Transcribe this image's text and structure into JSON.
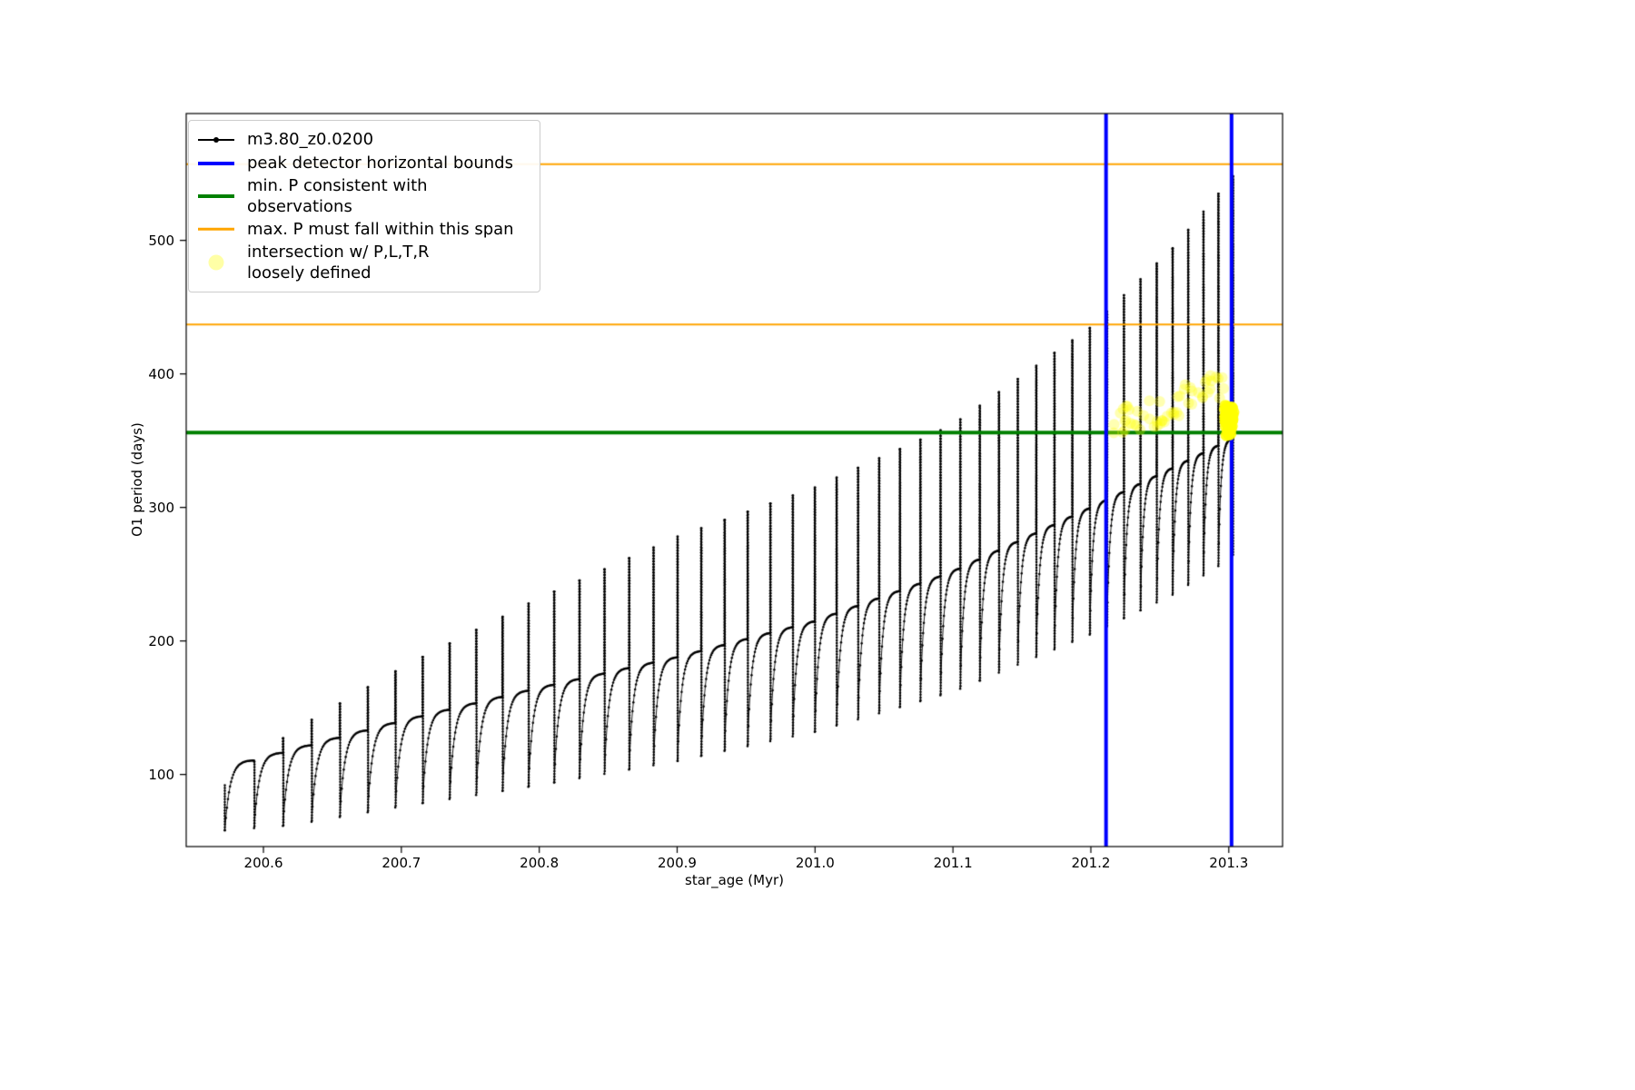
{
  "figure": {
    "background": "#ffffff",
    "axes_border_color": "#000000"
  },
  "chart_data": {
    "type": "line",
    "title": "",
    "xlabel": "star_age (Myr)",
    "ylabel": "O1 period (days)",
    "xlim": [
      200.544,
      201.339
    ],
    "ylim": [
      46,
      595
    ],
    "xticks": [
      "200.6",
      "200.7",
      "200.8",
      "200.9",
      "201.0",
      "201.1",
      "201.2",
      "201.3"
    ],
    "yticks": [
      "100",
      "200",
      "300",
      "400",
      "500"
    ],
    "grid": false,
    "legend_position": "upper left",
    "series": [
      {
        "name": "m3.80_z0.0200",
        "color": "#000000",
        "marker": "point",
        "description": "pulsation period track: ~46 sawtooth cycles, smooth saturating rise per cycle ending in a tall narrow spike; spike amplitude grows with age",
        "model": {
          "x_start": 200.572,
          "x_end": 201.303,
          "n_cycles": 46,
          "spacing_shrink_ratio": 2.0,
          "env_x": [
            200.572,
            200.62,
            200.7,
            200.8,
            200.9,
            201.0,
            201.1,
            201.2,
            201.26,
            201.303
          ],
          "bottom": [
            58,
            62,
            76,
            92,
            110,
            132,
            162,
            205,
            235,
            263
          ],
          "plateau": [
            105,
            118,
            140,
            165,
            188,
            215,
            252,
            300,
            330,
            352
          ],
          "top": [
            92,
            132,
            180,
            232,
            278,
            315,
            362,
            435,
            495,
            548
          ]
        }
      }
    ],
    "annotations": {
      "vlines": [
        {
          "x": 201.211,
          "color": "#0000ff",
          "lw": 4,
          "label": "peak detector horizontal bounds"
        },
        {
          "x": 201.302,
          "color": "#0000ff",
          "lw": 4
        }
      ],
      "hlines": [
        {
          "y": 356,
          "color": "#008000",
          "lw": 4,
          "label": "min. P consistent with observations"
        },
        {
          "y": 437,
          "color": "#ffa500",
          "lw": 2,
          "label": "max. P must fall within this span"
        },
        {
          "y": 557,
          "color": "#ffa500",
          "lw": 2
        }
      ],
      "scatter": {
        "label": "intersection w/ P,L,T,R loosely defined",
        "color": "#ffff00",
        "trail": {
          "x0": 201.215,
          "x1": 201.297,
          "y_base": 357,
          "y_rise": 30,
          "y_jitter": 24,
          "n": 55,
          "alpha": 0.3,
          "r": 6
        },
        "clump": {
          "x": 201.3,
          "y": 366,
          "sx": 0.0035,
          "sy": 13,
          "n": 90,
          "alpha": 0.85,
          "r": 6.5,
          "y_min": 352
        }
      }
    }
  },
  "legend": {
    "items": [
      {
        "label": "m3.80_z0.0200",
        "color": "#000000",
        "swatch": "line-dot"
      },
      {
        "label": "peak detector horizontal bounds",
        "color": "#0000ff",
        "swatch": "thick-line"
      },
      {
        "label": "min. P consistent with observations",
        "color": "#008000",
        "swatch": "thick-line"
      },
      {
        "label": "max. P must fall within this span",
        "color": "#ffa500",
        "swatch": "line"
      },
      {
        "label": "intersection w/ P,L,T,R\nloosely defined",
        "color": "#ffff00",
        "swatch": "dot"
      }
    ]
  }
}
